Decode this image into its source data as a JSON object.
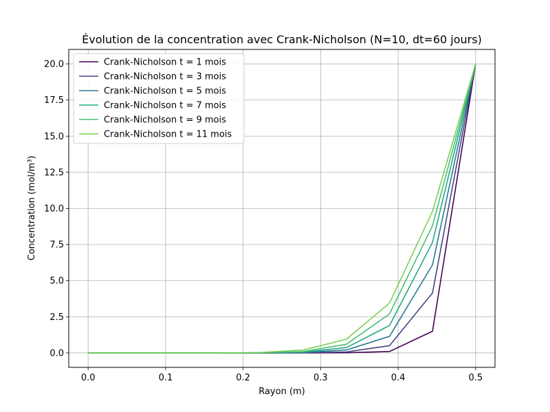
{
  "chart_data": {
    "type": "line",
    "title": "Évolution de la concentration avec Crank-Nicholson (N=10, dt=60 jours)",
    "xlabel": "Rayon (m)",
    "ylabel": "Concentration (mol/m³)",
    "xlim": [
      -0.025,
      0.525
    ],
    "ylim": [
      -1.0,
      21.0
    ],
    "xticks": [
      0.0,
      0.1,
      0.2,
      0.3,
      0.4,
      0.5
    ],
    "xtick_labels": [
      "0.0",
      "0.1",
      "0.2",
      "0.3",
      "0.4",
      "0.5"
    ],
    "yticks": [
      0.0,
      2.5,
      5.0,
      7.5,
      10.0,
      12.5,
      15.0,
      17.5,
      20.0
    ],
    "ytick_labels": [
      "0.0",
      "2.5",
      "5.0",
      "7.5",
      "10.0",
      "12.5",
      "15.0",
      "17.5",
      "20.0"
    ],
    "grid": true,
    "legend_position": "top-left",
    "x": [
      0.0,
      0.0556,
      0.1111,
      0.1667,
      0.2222,
      0.2778,
      0.3333,
      0.3889,
      0.4444,
      0.5
    ],
    "series": [
      {
        "name": "Crank-Nicholson t = 1 mois",
        "color": "#440154",
        "values": [
          0.0,
          0.0,
          0.0,
          0.0,
          0.0,
          0.0,
          0.01,
          0.1,
          1.5,
          20.0
        ]
      },
      {
        "name": "Crank-Nicholson t = 3 mois",
        "color": "#414487",
        "values": [
          0.0,
          0.0,
          0.0,
          0.0,
          0.0,
          0.01,
          0.07,
          0.5,
          4.15,
          20.0
        ]
      },
      {
        "name": "Crank-Nicholson t = 5 mois",
        "color": "#2a788e",
        "values": [
          0.0,
          0.0,
          0.0,
          0.0,
          0.0,
          0.03,
          0.2,
          1.15,
          6.1,
          20.0
        ]
      },
      {
        "name": "Crank-Nicholson t = 7 mois",
        "color": "#22a884",
        "values": [
          0.0,
          0.0,
          0.0,
          0.0,
          0.01,
          0.06,
          0.37,
          1.9,
          7.65,
          20.0
        ]
      },
      {
        "name": "Crank-Nicholson t = 9 mois",
        "color": "#43bf71",
        "values": [
          0.0,
          0.0,
          0.0,
          0.0,
          0.01,
          0.1,
          0.6,
          2.7,
          8.8,
          20.0
        ]
      },
      {
        "name": "Crank-Nicholson t = 11 mois",
        "color": "#7ad151",
        "values": [
          0.0,
          0.0,
          0.0,
          0.0,
          0.03,
          0.2,
          0.95,
          3.45,
          9.8,
          20.0
        ]
      }
    ]
  }
}
